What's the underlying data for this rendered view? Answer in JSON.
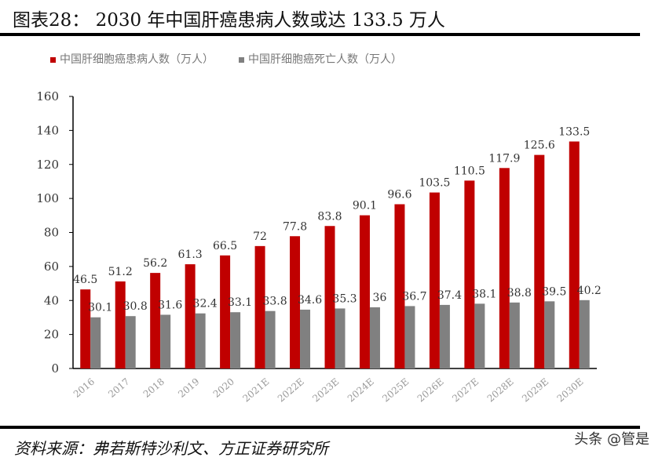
{
  "header": {
    "title": "图表28：  2030 年中国肝癌患病人数或达 133.5 万人"
  },
  "footer": {
    "source": "资料来源：弗若斯特沙利文、方正证券研究所",
    "watermark": "头条 @管是"
  },
  "chart_data": {
    "type": "bar",
    "title": "",
    "categories": [
      "2016",
      "2017",
      "2018",
      "2019",
      "2020",
      "2021E",
      "2022E",
      "2023E",
      "2024E",
      "2025E",
      "2026E",
      "2027E",
      "2028E",
      "2029E",
      "2030E"
    ],
    "series": [
      {
        "name": "中国肝细胞癌患病人数（万人）",
        "color": "#C00000",
        "values": [
          46.5,
          51.2,
          56.2,
          61.3,
          66.5,
          72,
          77.8,
          83.8,
          90.1,
          96.6,
          103.5,
          110.5,
          117.9,
          125.6,
          133.5
        ]
      },
      {
        "name": "中国肝细胞癌死亡人数（万人）",
        "color": "#808080",
        "values": [
          30.1,
          30.8,
          31.6,
          32.4,
          33.1,
          33.8,
          34.6,
          35.3,
          36,
          36.7,
          37.4,
          38.1,
          38.8,
          39.5,
          40.2
        ]
      }
    ],
    "ylim": [
      0,
      160
    ],
    "yticks": [
      0,
      20,
      40,
      60,
      80,
      100,
      120,
      140,
      160
    ],
    "grid": false,
    "legend": "top-left",
    "xlabel": "",
    "ylabel": ""
  }
}
